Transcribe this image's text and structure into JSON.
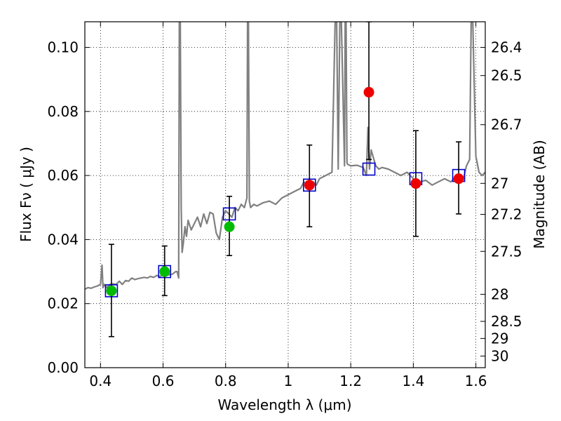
{
  "chart_data": {
    "type": "scatter",
    "xlabel": "Wavelength  λ (μm)",
    "ylabel": "Flux  Fν  ( μJy )",
    "y2label": "Magnitude (AB)",
    "xlim": [
      0.35,
      1.63
    ],
    "ylim": [
      0.0,
      0.108
    ],
    "grid": true,
    "x_ticks": [
      0.4,
      0.6,
      0.8,
      1.0,
      1.2,
      1.4,
      1.6
    ],
    "x_tick_labels": [
      "0.4",
      "0.6",
      "0.8",
      "1",
      "1.2",
      "1.4",
      "1.6"
    ],
    "y_ticks": [
      0.0,
      0.02,
      0.04,
      0.06,
      0.08,
      0.1
    ],
    "y_tick_labels": [
      "0.00",
      "0.02",
      "0.04",
      "0.06",
      "0.08",
      "0.10"
    ],
    "mag_ticks": [
      "26.4",
      "26.5",
      "26.7",
      "27",
      "27.2",
      "27.5",
      "28",
      "28.5",
      "29",
      "30"
    ],
    "colors": {
      "spectrum": "#808080",
      "model": "#0000cc",
      "optical": "#00bb00",
      "nir": "#ee0000",
      "errorbar": "#000000"
    },
    "series": [
      {
        "style": "spectrum-line",
        "x": [
          0.35,
          0.36,
          0.37,
          0.38,
          0.39,
          0.4,
          0.405,
          0.408,
          0.412,
          0.42,
          0.43,
          0.44,
          0.45,
          0.46,
          0.47,
          0.48,
          0.49,
          0.5,
          0.51,
          0.52,
          0.53,
          0.54,
          0.55,
          0.56,
          0.57,
          0.58,
          0.59,
          0.6,
          0.61,
          0.62,
          0.63,
          0.64,
          0.645,
          0.65,
          0.652,
          0.655,
          0.658,
          0.661,
          0.665,
          0.67,
          0.675,
          0.68,
          0.69,
          0.7,
          0.71,
          0.72,
          0.73,
          0.74,
          0.75,
          0.76,
          0.77,
          0.78,
          0.79,
          0.8,
          0.81,
          0.82,
          0.83,
          0.84,
          0.85,
          0.86,
          0.868,
          0.87,
          0.873,
          0.876,
          0.88,
          0.89,
          0.9,
          0.92,
          0.94,
          0.96,
          0.98,
          1.0,
          1.02,
          1.04,
          1.05,
          1.06,
          1.08,
          1.09,
          1.1,
          1.12,
          1.14,
          1.15,
          1.155,
          1.16,
          1.165,
          1.17,
          1.18,
          1.182,
          1.185,
          1.188,
          1.19,
          1.2,
          1.22,
          1.24,
          1.25,
          1.255,
          1.26,
          1.265,
          1.28,
          1.29,
          1.3,
          1.32,
          1.34,
          1.36,
          1.38,
          1.4,
          1.42,
          1.44,
          1.46,
          1.48,
          1.5,
          1.52,
          1.54,
          1.56,
          1.57,
          1.58,
          1.585,
          1.59,
          1.6,
          1.61,
          1.62,
          1.63
        ],
        "values": [
          0.0245,
          0.025,
          0.0248,
          0.0252,
          0.0255,
          0.026,
          0.032,
          0.025,
          0.026,
          0.025,
          0.026,
          0.0262,
          0.026,
          0.027,
          0.026,
          0.0272,
          0.027,
          0.028,
          0.0275,
          0.0278,
          0.028,
          0.0282,
          0.028,
          0.0285,
          0.0282,
          0.0288,
          0.0285,
          0.029,
          0.0288,
          0.029,
          0.0292,
          0.03,
          0.03,
          0.028,
          0.108,
          0.108,
          0.05,
          0.036,
          0.039,
          0.044,
          0.041,
          0.046,
          0.043,
          0.045,
          0.047,
          0.044,
          0.048,
          0.045,
          0.0485,
          0.048,
          0.042,
          0.04,
          0.047,
          0.049,
          0.048,
          0.047,
          0.05,
          0.049,
          0.051,
          0.05,
          0.053,
          0.108,
          0.108,
          0.052,
          0.05,
          0.051,
          0.0505,
          0.0515,
          0.052,
          0.051,
          0.053,
          0.054,
          0.055,
          0.056,
          0.058,
          0.057,
          0.058,
          0.057,
          0.059,
          0.06,
          0.061,
          0.108,
          0.108,
          0.062,
          0.108,
          0.108,
          0.063,
          0.108,
          0.108,
          0.064,
          0.0635,
          0.063,
          0.0632,
          0.0625,
          0.06,
          0.075,
          0.062,
          0.068,
          0.063,
          0.062,
          0.0625,
          0.062,
          0.061,
          0.06,
          0.061,
          0.059,
          0.058,
          0.0585,
          0.057,
          0.058,
          0.059,
          0.058,
          0.06,
          0.059,
          0.063,
          0.065,
          0.108,
          0.108,
          0.066,
          0.061,
          0.06,
          0.061
        ]
      },
      {
        "style": "open-squares",
        "x": [
          0.435,
          0.605,
          0.812,
          1.068,
          1.258,
          1.408,
          1.545
        ],
        "values": [
          0.024,
          0.03,
          0.048,
          0.057,
          0.062,
          0.059,
          0.06
        ]
      },
      {
        "style": "green-dots",
        "x": [
          0.435,
          0.605,
          0.812
        ],
        "values": [
          0.024,
          0.03,
          0.044
        ],
        "err_low": [
          0.0097,
          0.0225,
          0.035
        ],
        "err_high": [
          0.0385,
          0.038,
          0.0535
        ]
      },
      {
        "style": "red-dots",
        "x": [
          1.068,
          1.258,
          1.408,
          1.545
        ],
        "values": [
          0.057,
          0.086,
          0.0575,
          0.059
        ],
        "err_low": [
          0.044,
          0.065,
          0.041,
          0.048
        ],
        "err_high": [
          0.0695,
          0.108,
          0.074,
          0.0705
        ]
      }
    ]
  }
}
